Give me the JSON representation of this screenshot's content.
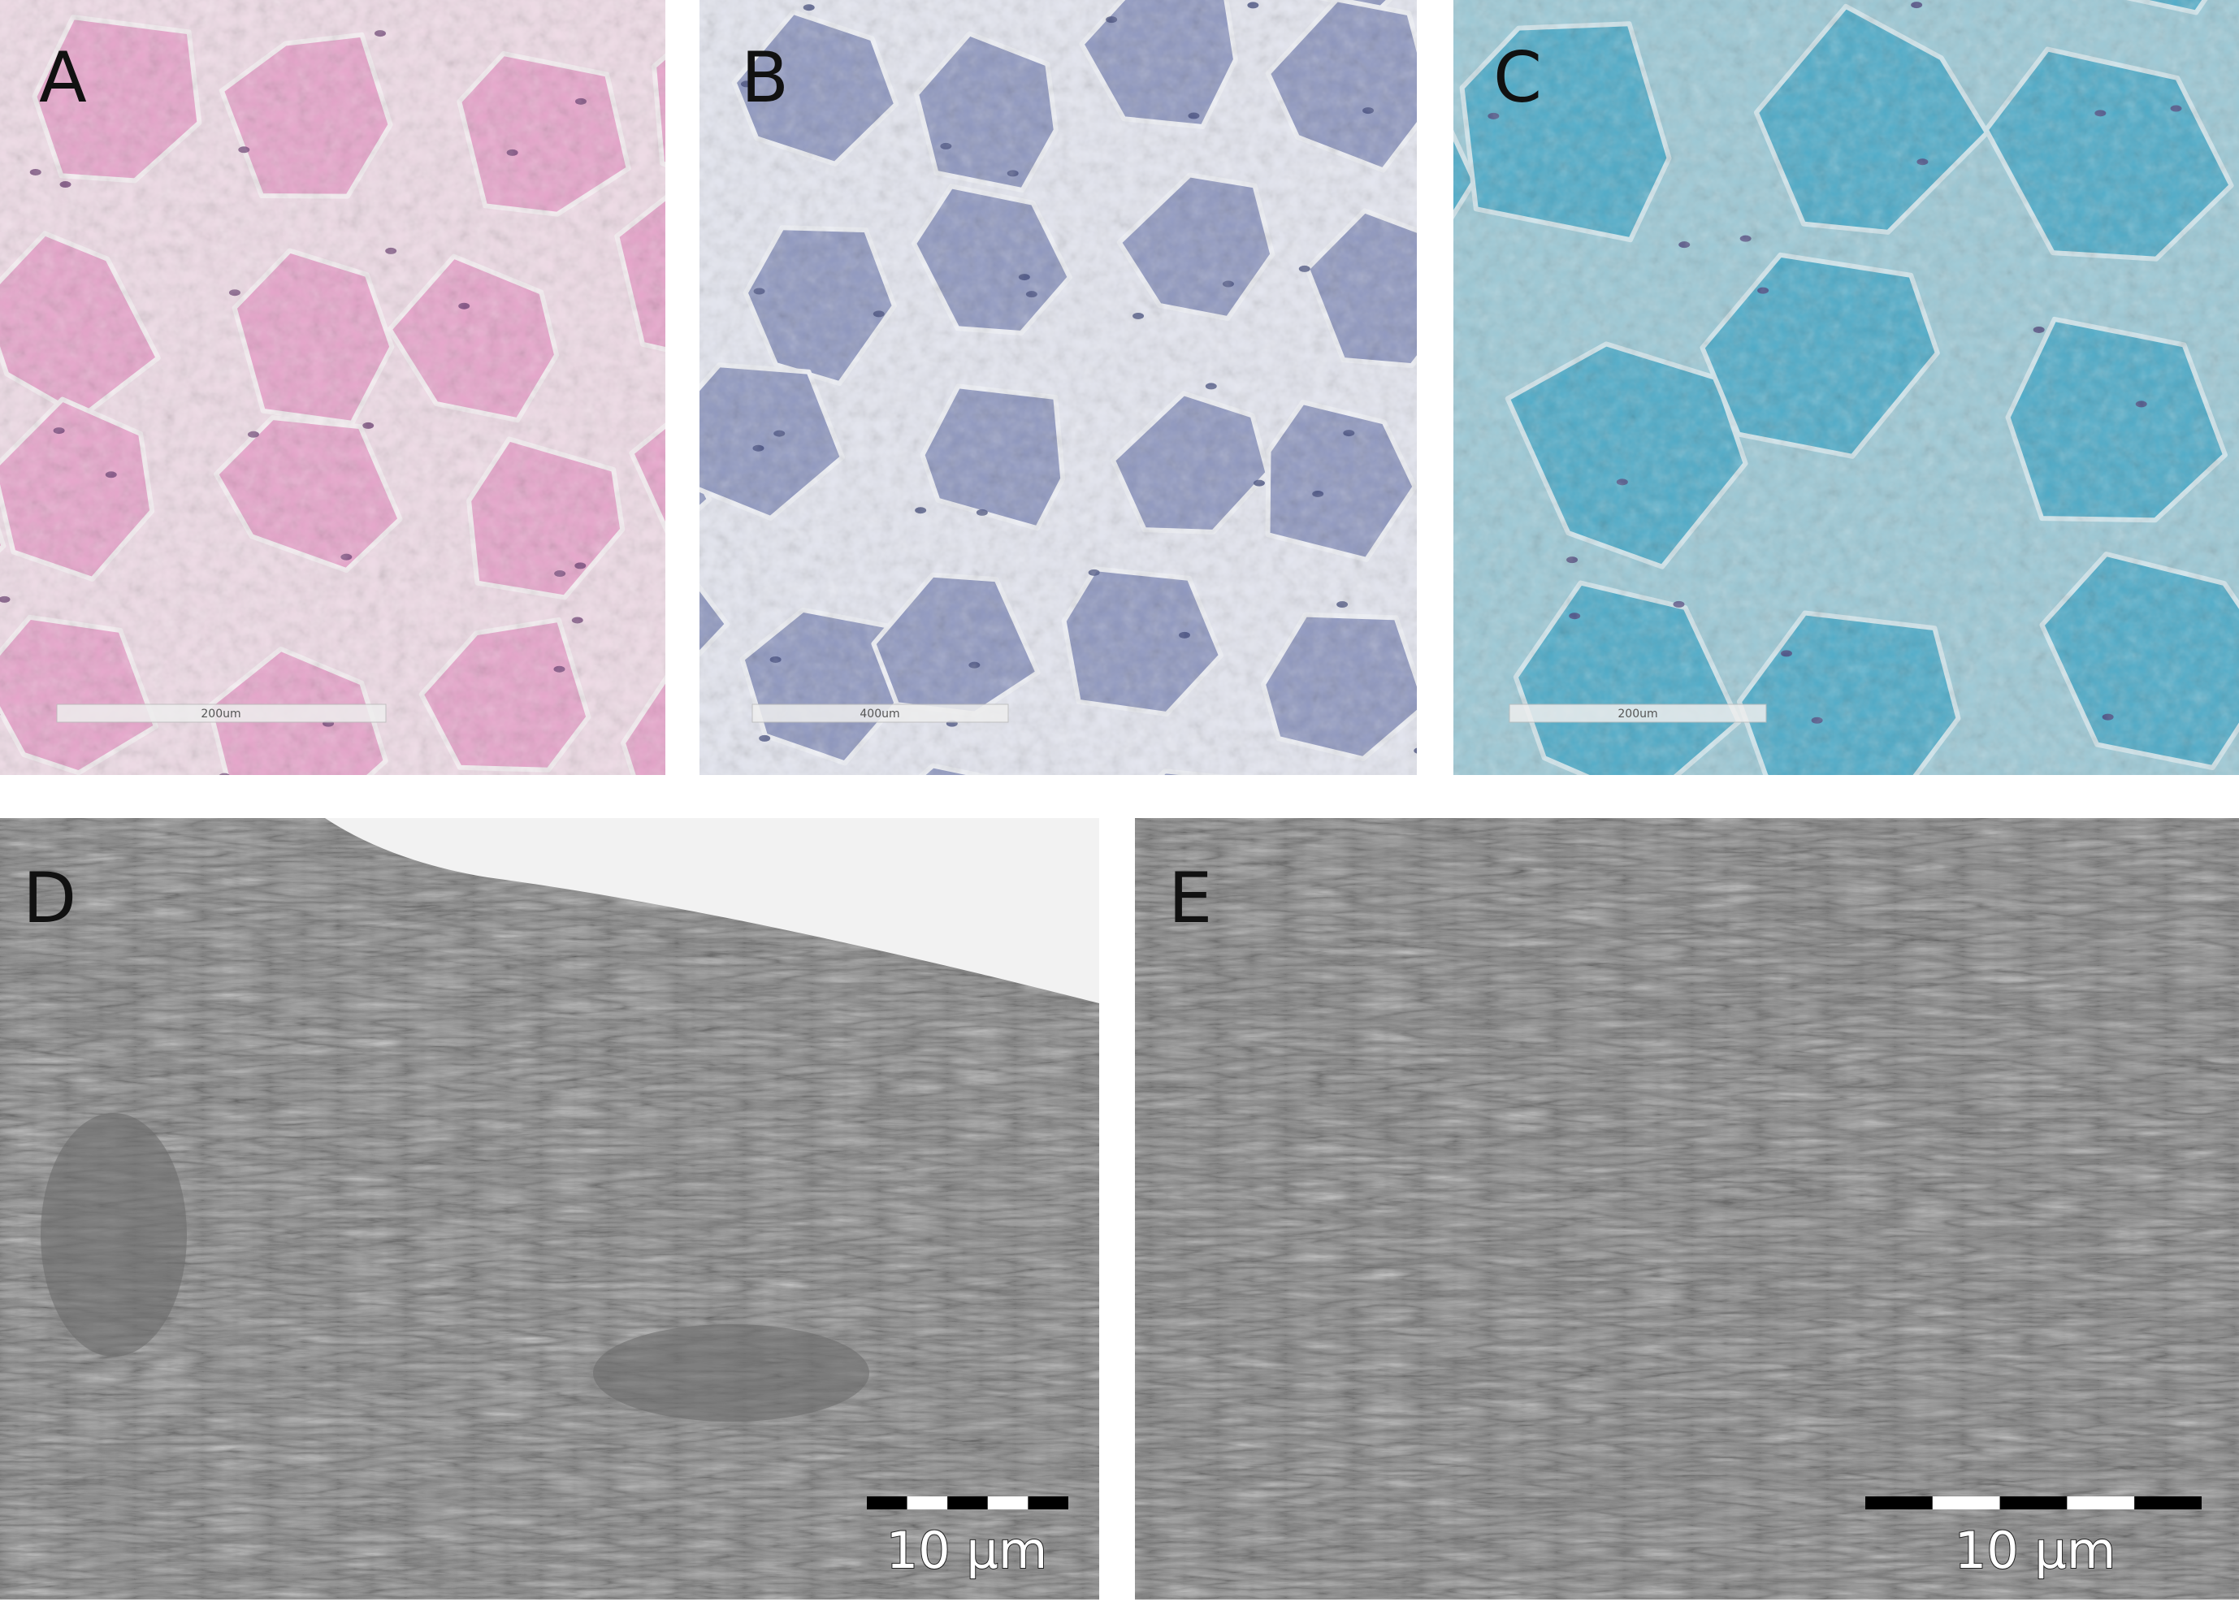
{
  "panels": [
    {
      "label": "A",
      "scale_bar": "200um"
    },
    {
      "label": "B",
      "scale_bar": "400um"
    },
    {
      "label": "C",
      "scale_bar": "200um"
    },
    {
      "label": "D",
      "scale_bar": "10 µm"
    },
    {
      "label": "E",
      "scale_bar": "10 µm"
    }
  ]
}
